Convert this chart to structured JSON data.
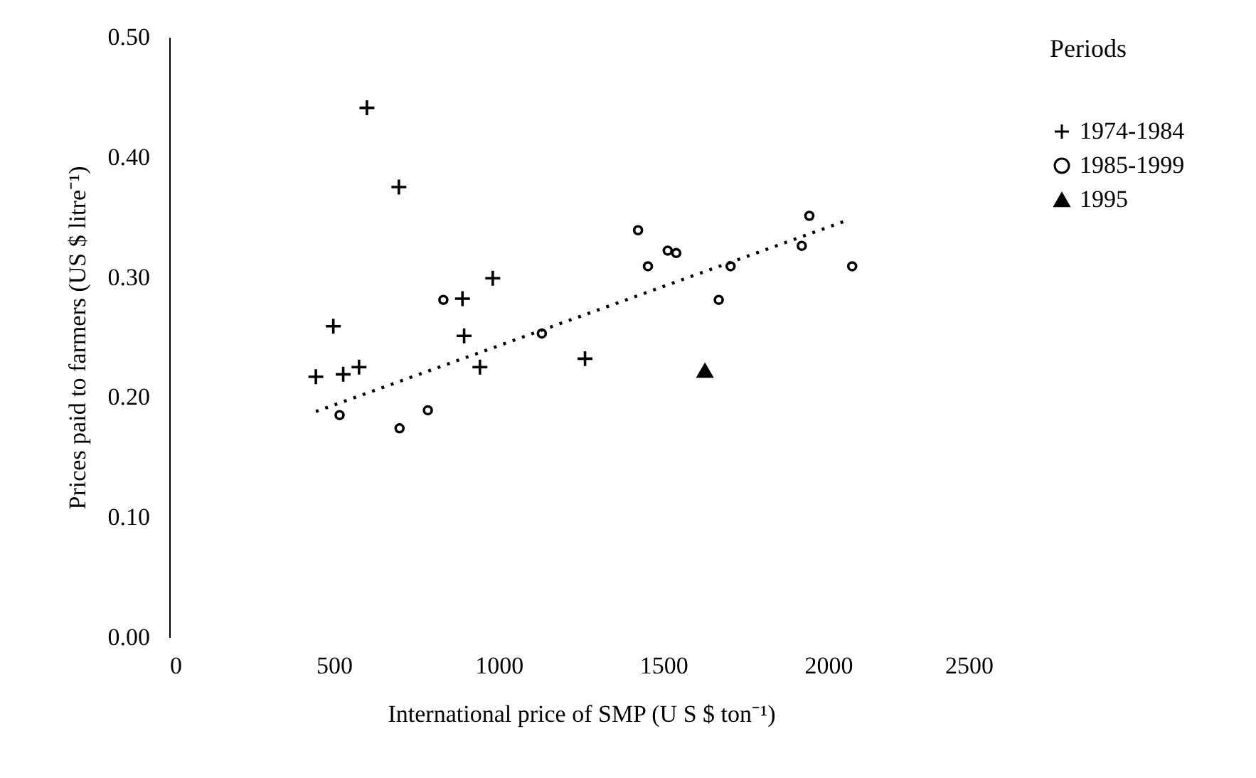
{
  "chart_data": {
    "type": "scatter",
    "xlabel": "International price of SMP (U S $ ton⁻¹)",
    "ylabel": "Prices paid to farmers (US $ litre⁻¹)",
    "legend_title": "Periods",
    "xlim": [
      0,
      2500
    ],
    "xticks": [
      0,
      500,
      1000,
      1500,
      2000,
      2500
    ],
    "ylim": [
      0,
      0.5
    ],
    "yticks": [
      {
        "value": 0,
        "label": "0.00"
      },
      {
        "value": 0.1,
        "label": "0.10"
      },
      {
        "value": 0.2,
        "label": "0.20"
      },
      {
        "value": 0.3,
        "label": "0.30"
      },
      {
        "value": 0.4,
        "label": "0.40"
      },
      {
        "value": 0.5,
        "label": "0.50"
      }
    ],
    "grid": false,
    "legend": "right",
    "series": [
      {
        "name": "1974-1984",
        "color": "#000000",
        "marker": "cross",
        "x": [
          600,
          697,
          982,
          890,
          498,
          895,
          445,
          528,
          576,
          943,
          1262
        ],
        "values": [
          0.441,
          0.375,
          0.299,
          0.282,
          0.259,
          0.251,
          0.217,
          0.219,
          0.225,
          0.225,
          0.232
        ]
      },
      {
        "name": "1985-1999",
        "color": "#000000",
        "marker": "circle",
        "x": [
          832,
          517,
          699,
          785,
          1131,
          1423,
          1453,
          1513,
          1539,
          1668,
          1704,
          1920,
          1943,
          2073
        ],
        "values": [
          0.281,
          0.185,
          0.174,
          0.189,
          0.253,
          0.339,
          0.309,
          0.322,
          0.32,
          0.281,
          0.309,
          0.326,
          0.351,
          0.309
        ]
      },
      {
        "name": "1995",
        "color": "#000000",
        "marker": "triangle",
        "x": [
          1626
        ],
        "values": [
          0.222
        ]
      },
      {
        "type": "line",
        "color": "#000000",
        "line_style": "dotted",
        "x": [
          445,
          2055
        ],
        "values": [
          0.188,
          0.347
        ]
      }
    ]
  }
}
